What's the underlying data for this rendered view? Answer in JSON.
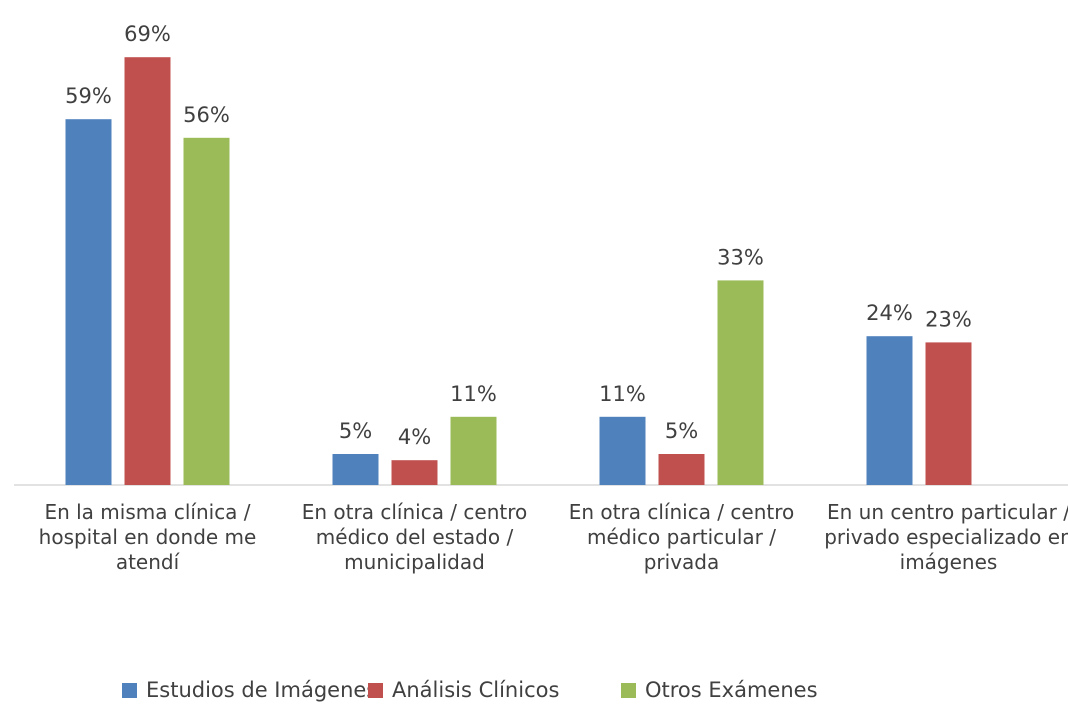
{
  "chart_data": {
    "type": "bar",
    "categories": [
      "En la misma clínica / hospital en donde me atendí",
      "En otra clínica / centro médico del estado / municipalidad",
      "En otra clínica / centro médico particular / privada",
      "En un centro particular / privado especializado en imágenes"
    ],
    "series": [
      {
        "name": "Estudios de Imágenes",
        "color": "#4f81bd",
        "values": [
          59,
          5,
          11,
          24
        ],
        "value_labels": [
          "59%",
          "5%",
          "11%",
          "24%"
        ]
      },
      {
        "name": "Análisis Clínicos",
        "color": "#c0504d",
        "values": [
          69,
          4,
          5,
          23
        ],
        "value_labels": [
          "69%",
          "4%",
          "5%",
          "23%"
        ]
      },
      {
        "name": "Otros Exámenes",
        "color": "#9bbb59",
        "values": [
          56,
          11,
          33,
          null
        ],
        "value_labels": [
          "56%",
          "11%",
          "33%",
          null
        ]
      }
    ],
    "ylim": [
      0,
      70
    ],
    "legend": "bottom"
  }
}
